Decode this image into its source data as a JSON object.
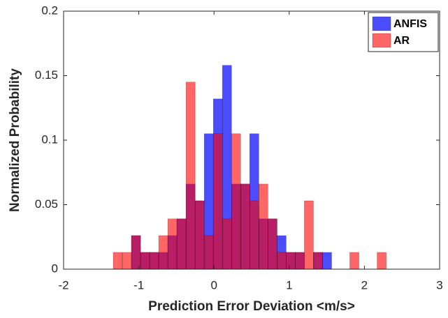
{
  "chart_data": {
    "type": "histogram",
    "xlabel": "Prediction Error Deviation <m/s>",
    "ylabel": "Normalized Probability",
    "bins": [
      -1.34,
      -1.219,
      -1.098,
      -0.977,
      -0.856,
      -0.735,
      -0.614,
      -0.493,
      -0.372,
      -0.251,
      -0.13,
      -0.009,
      0.112,
      0.233,
      0.354,
      0.475,
      0.596,
      0.717,
      0.838,
      0.959,
      1.08,
      1.201,
      1.322,
      1.443,
      1.564,
      1.685,
      1.806,
      1.927,
      2.048,
      2.169,
      2.29
    ],
    "series": [
      {
        "name": "ANFIS",
        "color": "#0000ff",
        "values": [
          0,
          0,
          0.026,
          0.013,
          0.013,
          0.013,
          0.026,
          0.039,
          0.066,
          0.053,
          0.105,
          0.132,
          0.158,
          0.066,
          0.066,
          0.105,
          0.039,
          0.039,
          0.026,
          0.013,
          0.013,
          0,
          0.013,
          0.013,
          0,
          0,
          0,
          0,
          0,
          0
        ]
      },
      {
        "name": "AR",
        "color": "#ff0000",
        "values": [
          0.013,
          0.013,
          0.026,
          0.013,
          0.013,
          0.026,
          0.039,
          0.039,
          0.145,
          0.053,
          0.026,
          0.105,
          0.039,
          0.105,
          0.066,
          0.053,
          0.066,
          0.039,
          0.013,
          0.013,
          0.013,
          0.053,
          0.013,
          0,
          0,
          0,
          0.013,
          0,
          0,
          0.013
        ]
      }
    ],
    "xlim": [
      -2,
      3
    ],
    "xticks": [
      -2,
      -1,
      0,
      1,
      2,
      3
    ],
    "ylim": [
      0,
      0.2
    ],
    "yticks": [
      0,
      0.05,
      0.1,
      0.15,
      0.2
    ],
    "legend": "upper right"
  }
}
